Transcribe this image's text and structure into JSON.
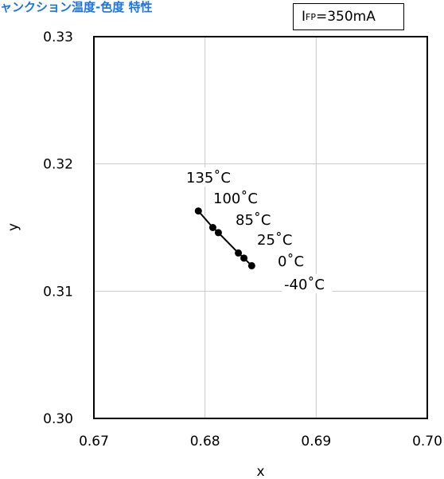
{
  "header": {
    "title": "ャンクション温度-色度 特性",
    "condition_label": "I",
    "condition_subscript": "FP",
    "condition_value": "=350mA"
  },
  "chart_data": {
    "type": "scatter",
    "title": "ャンクション温度-色度 特性",
    "xlabel": "x",
    "ylabel": "y",
    "xlim": [
      0.67,
      0.7
    ],
    "ylim": [
      0.3,
      0.33
    ],
    "x_ticks": [
      "0.67",
      "0.68",
      "0.69",
      "0.70"
    ],
    "y_ticks": [
      "0.30",
      "0.31",
      "0.32",
      "0.33"
    ],
    "grid": true,
    "series": [
      {
        "points": [
          {
            "temp": "135°C",
            "x": 0.6794,
            "y": 0.3163
          },
          {
            "temp": "100°C",
            "x": 0.6807,
            "y": 0.315
          },
          {
            "temp": "85°C",
            "x": 0.6812,
            "y": 0.3146
          },
          {
            "temp": "25°C",
            "x": 0.683,
            "y": 0.313
          },
          {
            "temp": "0°C",
            "x": 0.6835,
            "y": 0.3126
          },
          {
            "temp": "-40°C",
            "x": 0.6842,
            "y": 0.312
          }
        ]
      }
    ],
    "annotations": [
      "135˚C",
      "100˚C",
      "85˚C",
      "25˚C",
      "0˚C",
      "-40˚C"
    ]
  }
}
